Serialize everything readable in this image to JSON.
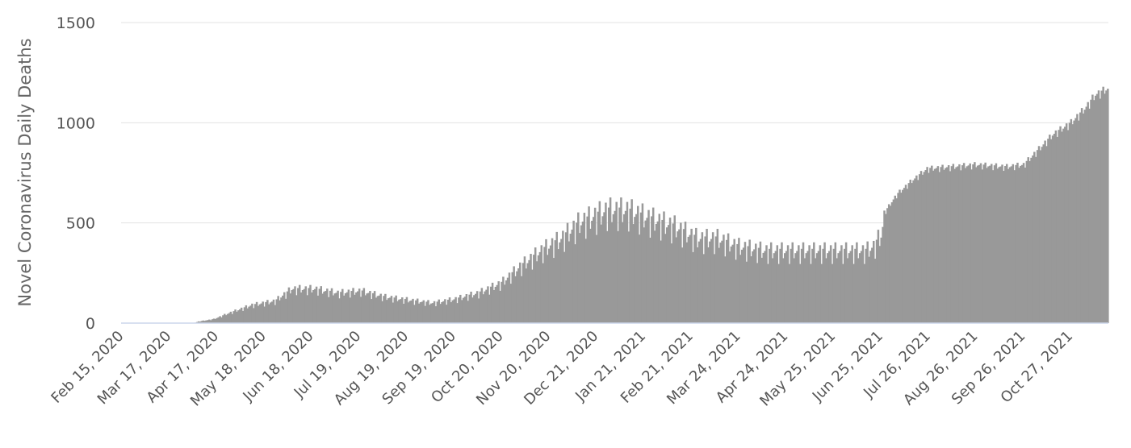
{
  "chart_data": {
    "type": "bar",
    "title": "",
    "xlabel": "",
    "ylabel": "Novel Coronavirus Daily Deaths",
    "ylim": [
      0,
      1500
    ],
    "y_ticks": [
      0,
      500,
      1000,
      1500
    ],
    "grid": "horizontal",
    "x_tick_labels": [
      "Feb 15, 2020",
      "Mar 17, 2020",
      "Apr 17, 2020",
      "May 18, 2020",
      "Jun 18, 2020",
      "Jul 19, 2020",
      "Aug 19, 2020",
      "Sep 19, 2020",
      "Oct 20, 2020",
      "Nov 20, 2020",
      "Dec 21, 2020",
      "Jan 21, 2021",
      "Feb 21, 2021",
      "Mar 24, 2021",
      "Apr 24, 2021",
      "May 25, 2021",
      "Jun 25, 2021",
      "Jul 26, 2021",
      "Aug 26, 2021",
      "Sep 26, 2021",
      "Oct 27, 2021"
    ],
    "x_start": "Feb 15, 2020",
    "x_end": "Nov 20, 2021",
    "bar_color": "#999999",
    "series_knots": [
      {
        "date": "2020-02-15",
        "value": 0
      },
      {
        "date": "2020-04-02",
        "value": 0
      },
      {
        "date": "2020-04-05",
        "value": 8
      },
      {
        "date": "2020-04-15",
        "value": 20
      },
      {
        "date": "2020-04-25",
        "value": 50
      },
      {
        "date": "2020-05-10",
        "value": 90
      },
      {
        "date": "2020-05-25",
        "value": 110
      },
      {
        "date": "2020-06-05",
        "value": 170
      },
      {
        "date": "2020-06-20",
        "value": 170
      },
      {
        "date": "2020-07-05",
        "value": 150
      },
      {
        "date": "2020-07-20",
        "value": 160
      },
      {
        "date": "2020-08-05",
        "value": 130
      },
      {
        "date": "2020-08-20",
        "value": 115
      },
      {
        "date": "2020-09-05",
        "value": 100
      },
      {
        "date": "2020-09-20",
        "value": 120
      },
      {
        "date": "2020-10-05",
        "value": 150
      },
      {
        "date": "2020-10-20",
        "value": 200
      },
      {
        "date": "2020-11-01",
        "value": 280
      },
      {
        "date": "2020-11-15",
        "value": 360
      },
      {
        "date": "2020-11-28",
        "value": 420
      },
      {
        "date": "2020-12-10",
        "value": 500
      },
      {
        "date": "2020-12-28",
        "value": 560
      },
      {
        "date": "2021-01-10",
        "value": 560
      },
      {
        "date": "2021-01-25",
        "value": 520
      },
      {
        "date": "2021-02-10",
        "value": 480
      },
      {
        "date": "2021-02-25",
        "value": 420
      },
      {
        "date": "2021-03-10",
        "value": 420
      },
      {
        "date": "2021-03-24",
        "value": 380
      },
      {
        "date": "2021-04-10",
        "value": 360
      },
      {
        "date": "2021-05-01",
        "value": 360
      },
      {
        "date": "2021-05-25",
        "value": 360
      },
      {
        "date": "2021-06-15",
        "value": 360
      },
      {
        "date": "2021-06-20",
        "value": 380
      },
      {
        "date": "2021-06-25",
        "value": 440
      },
      {
        "date": "2021-06-28",
        "value": 560
      },
      {
        "date": "2021-07-05",
        "value": 640
      },
      {
        "date": "2021-07-15",
        "value": 710
      },
      {
        "date": "2021-07-25",
        "value": 770
      },
      {
        "date": "2021-08-10",
        "value": 780
      },
      {
        "date": "2021-08-26",
        "value": 790
      },
      {
        "date": "2021-09-15",
        "value": 780
      },
      {
        "date": "2021-09-26",
        "value": 790
      },
      {
        "date": "2021-10-05",
        "value": 860
      },
      {
        "date": "2021-10-15",
        "value": 940
      },
      {
        "date": "2021-10-27",
        "value": 1000
      },
      {
        "date": "2021-11-05",
        "value": 1070
      },
      {
        "date": "2021-11-12",
        "value": 1140
      },
      {
        "date": "2021-11-20",
        "value": 1170
      }
    ]
  }
}
